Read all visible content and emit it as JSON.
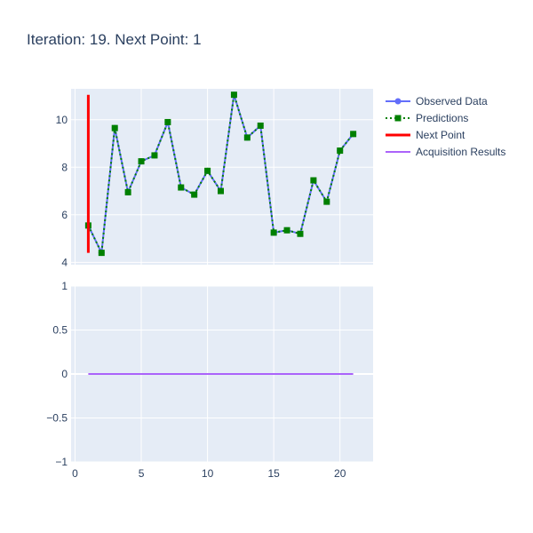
{
  "title": "Iteration: 19. Next Point: 1",
  "colors": {
    "observed": "#636efa",
    "predictions": "#008000",
    "next_point": "#ff0000",
    "acquisition": "#ab63fa",
    "plot_bg": "#e5ecf6",
    "grid": "#ffffff",
    "text": "#2a3f5f"
  },
  "chart_data": [
    {
      "type": "line",
      "panel": "top",
      "xlim": [
        -0.3,
        22.5
      ],
      "ylim": [
        3.9,
        11.3
      ],
      "yticks": [
        4,
        6,
        8,
        10
      ],
      "xticks": [
        0,
        5,
        10,
        15,
        20
      ],
      "grid": true,
      "legend_position": "top-right",
      "series": [
        {
          "name": "Observed Data",
          "mode": "lines+markers",
          "x": [
            1,
            2,
            3,
            4,
            5,
            6,
            7,
            8,
            9,
            10,
            11,
            12,
            13,
            14,
            15,
            16,
            17,
            18,
            19,
            20,
            21
          ],
          "y": [
            5.55,
            4.4,
            9.65,
            6.95,
            8.25,
            8.5,
            9.9,
            7.15,
            6.85,
            7.85,
            7.0,
            11.05,
            9.25,
            9.75,
            5.25,
            5.35,
            5.2,
            7.45,
            6.55,
            8.7,
            9.4
          ]
        },
        {
          "name": "Predictions",
          "mode": "lines+markers",
          "dash": "dot",
          "x": [
            1,
            2,
            3,
            4,
            5,
            6,
            7,
            8,
            9,
            10,
            11,
            12,
            13,
            14,
            15,
            16,
            17,
            18,
            19,
            20,
            21
          ],
          "y": [
            5.55,
            4.4,
            9.65,
            6.95,
            8.25,
            8.5,
            9.9,
            7.15,
            6.85,
            7.85,
            7.0,
            11.05,
            9.25,
            9.75,
            5.25,
            5.35,
            5.2,
            7.45,
            6.55,
            8.7,
            9.4
          ]
        },
        {
          "name": "Next Point",
          "mode": "lines",
          "x": [
            1,
            1
          ],
          "y": [
            4.4,
            11.05
          ]
        }
      ]
    },
    {
      "type": "line",
      "panel": "bottom",
      "xlim": [
        -0.3,
        22.5
      ],
      "ylim": [
        -1,
        1
      ],
      "yticks": [
        -1,
        -0.5,
        0,
        0.5,
        1
      ],
      "ytick_labels": [
        "−1",
        "−0.5",
        "0",
        "0.5",
        "1"
      ],
      "xticks": [
        0,
        5,
        10,
        15,
        20
      ],
      "grid": true,
      "series": [
        {
          "name": "Acquisition Results",
          "mode": "lines",
          "x": [
            1,
            21
          ],
          "y": [
            0,
            0
          ]
        }
      ]
    }
  ]
}
